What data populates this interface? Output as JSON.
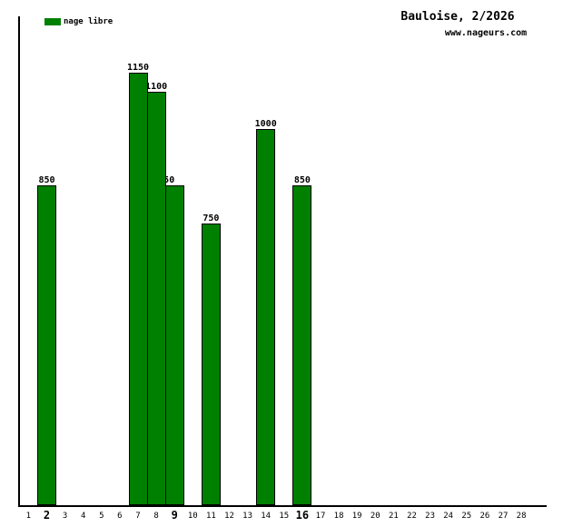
{
  "header": {
    "title": "Bauloise, 2/2026",
    "subtitle": "www.nageurs.com"
  },
  "legend": {
    "label": "nage libre",
    "color": "#008000"
  },
  "chart_data": {
    "type": "bar",
    "title": "Bauloise, 2/2026",
    "subtitle": "www.nageurs.com",
    "legend": [
      "nage libre"
    ],
    "legend_position": "top-left",
    "bar_color": "#008000",
    "bar_border_color": "#000000",
    "xlabel": "",
    "ylabel": "",
    "ylim": [
      0,
      1300
    ],
    "grid": false,
    "y_axis_ticks": "none",
    "data_labels": true,
    "categories": [
      "1",
      "2",
      "3",
      "4",
      "5",
      "6",
      "7",
      "8",
      "9",
      "10",
      "11",
      "12",
      "13",
      "14",
      "15",
      "16",
      "17",
      "18",
      "19",
      "20",
      "21",
      "22",
      "23",
      "24",
      "25",
      "26",
      "27",
      "28"
    ],
    "bold_categories": [
      "2",
      "9",
      "16"
    ],
    "values": [
      0,
      850,
      0,
      0,
      0,
      0,
      1150,
      1100,
      850,
      0,
      750,
      0,
      0,
      1000,
      0,
      850,
      0,
      0,
      0,
      0,
      0,
      0,
      0,
      0,
      0,
      0,
      0,
      0
    ],
    "shifted_label_categories": [
      "9"
    ]
  }
}
